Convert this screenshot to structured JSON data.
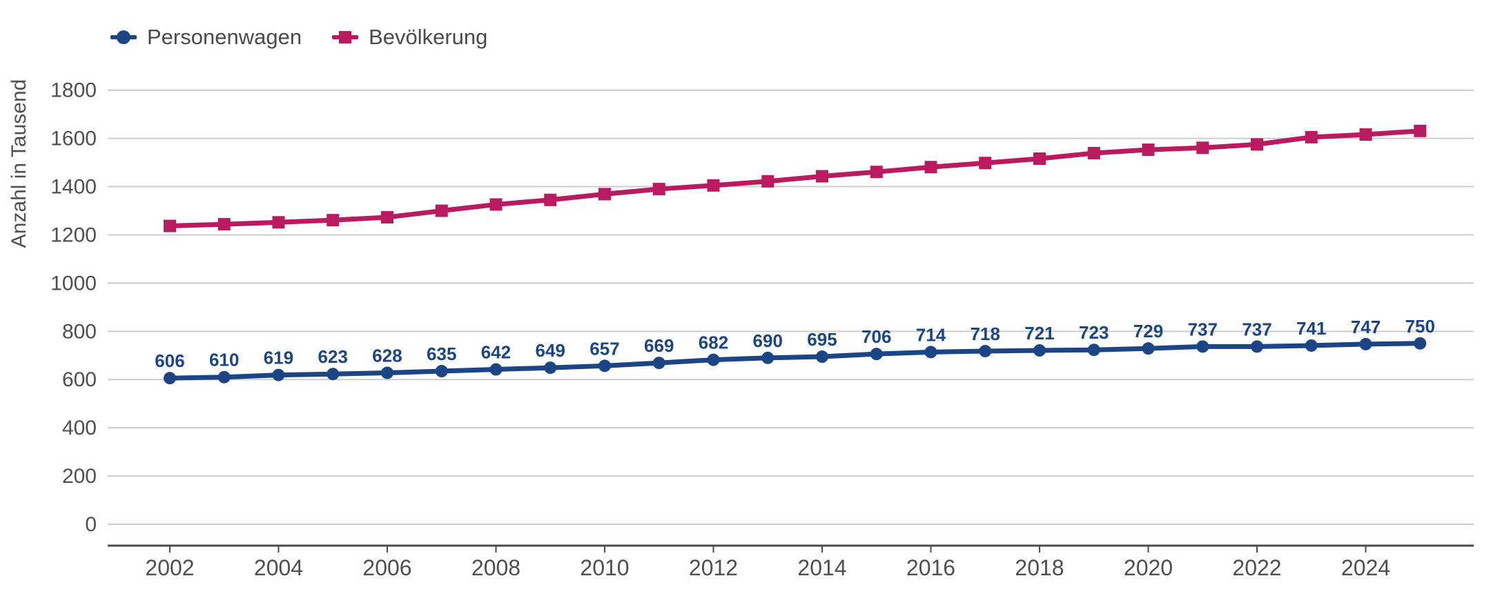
{
  "legend": {
    "items": [
      {
        "label": "Personenwagen",
        "color": "#1b4584",
        "marker": "circle"
      },
      {
        "label": "Bevölkerung",
        "color": "#ba1b60",
        "marker": "square"
      }
    ]
  },
  "chart_data": {
    "type": "line",
    "title": "",
    "xlabel": "",
    "ylabel": "Anzahl in Tausend",
    "x": [
      2002,
      2003,
      2004,
      2005,
      2006,
      2007,
      2008,
      2009,
      2010,
      2011,
      2012,
      2013,
      2014,
      2015,
      2016,
      2017,
      2018,
      2019,
      2020,
      2021,
      2022,
      2023,
      2024,
      2025
    ],
    "x_tick_labels": [
      "2002",
      "2004",
      "2006",
      "2008",
      "2010",
      "2012",
      "2014",
      "2016",
      "2018",
      "2020",
      "2022",
      "2024"
    ],
    "ylim": [
      0,
      1800
    ],
    "y_ticks": [
      0,
      200,
      400,
      600,
      800,
      1000,
      1200,
      1400,
      1600,
      1800
    ],
    "grid": "horizontal",
    "legend_position": "top-left",
    "series": [
      {
        "name": "Personenwagen",
        "color": "#1b4584",
        "marker": "circle",
        "data_labels": true,
        "values": [
          606,
          610,
          619,
          623,
          628,
          635,
          642,
          649,
          657,
          669,
          682,
          690,
          695,
          706,
          714,
          718,
          721,
          723,
          729,
          737,
          737,
          741,
          747,
          750
        ]
      },
      {
        "name": "Bevölkerung",
        "color": "#ba1b60",
        "marker": "square",
        "data_labels": false,
        "values": [
          1237,
          1244,
          1252,
          1261,
          1273,
          1300,
          1326,
          1345,
          1369,
          1390,
          1405,
          1422,
          1443,
          1461,
          1481,
          1498,
          1516,
          1539,
          1553,
          1561,
          1575,
          1605,
          1616,
          1631
        ]
      }
    ],
    "colors": {
      "grid": "#cccccc",
      "axis": "#4a4a4a",
      "tick_text": "#4f4f4f"
    }
  }
}
